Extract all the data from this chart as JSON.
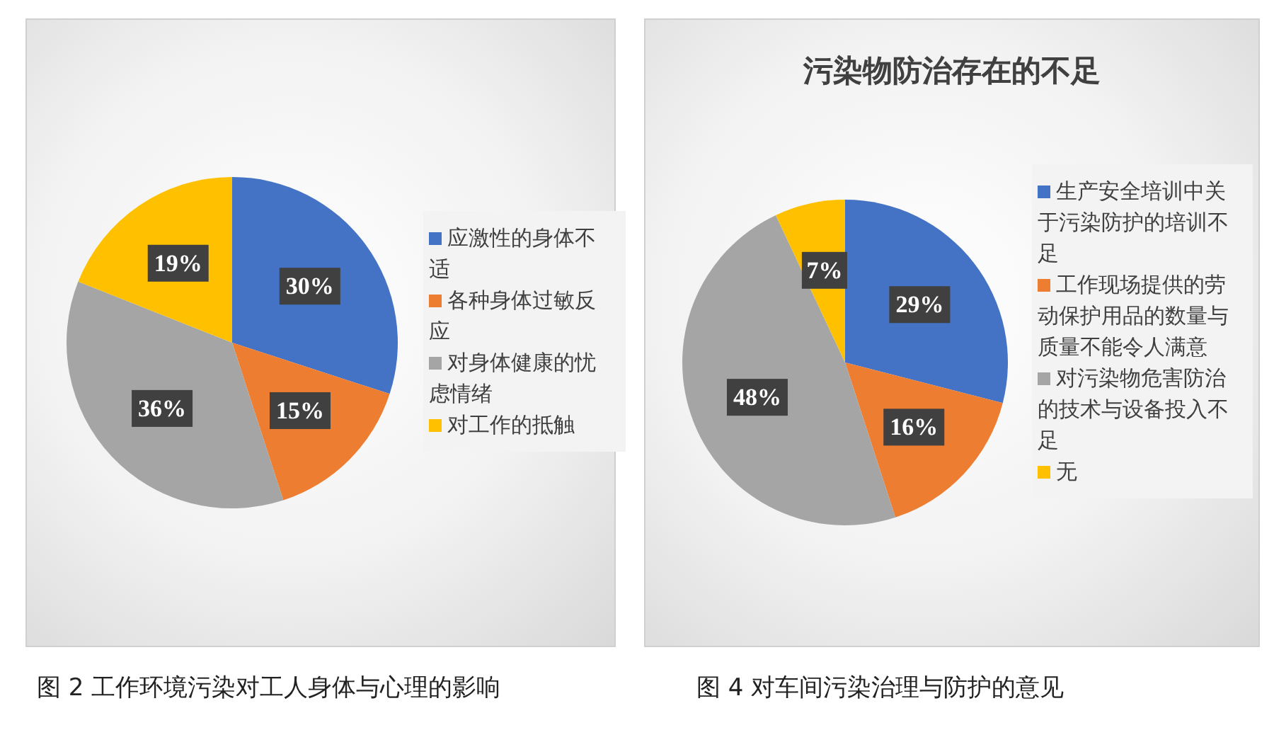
{
  "chart_data": [
    {
      "type": "pie",
      "categories": [
        "应激性的身体不适",
        "各种身体过敏反应",
        "对身体健康的忧虑情绪",
        "对工作的抵触"
      ],
      "values": [
        30,
        15,
        36,
        19
      ],
      "colors": [
        "#4472c4",
        "#ed7d31",
        "#a5a5a5",
        "#ffc000"
      ],
      "value_labels": [
        "30%",
        "15%",
        "36%",
        "19%"
      ],
      "legend": "right",
      "annotations": [
        "图 2 工作环境污染对工人身体与心理的影响"
      ]
    },
    {
      "type": "pie",
      "title": "污染物防治存在的不足",
      "categories": [
        "生产安全培训中关于污染防护的培训不足",
        "工作现场提供的劳动保护用品的数量与质量不能令人满意",
        "对污染物危害防治的技术与设备投入不足",
        "无"
      ],
      "values": [
        29,
        16,
        48,
        7
      ],
      "colors": [
        "#4472c4",
        "#ed7d31",
        "#a5a5a5",
        "#ffc000"
      ],
      "value_labels": [
        "29%",
        "16%",
        "48%",
        "7%"
      ],
      "legend": "right",
      "annotations": [
        "图 4 对车间污染治理与防护的意见"
      ]
    }
  ]
}
